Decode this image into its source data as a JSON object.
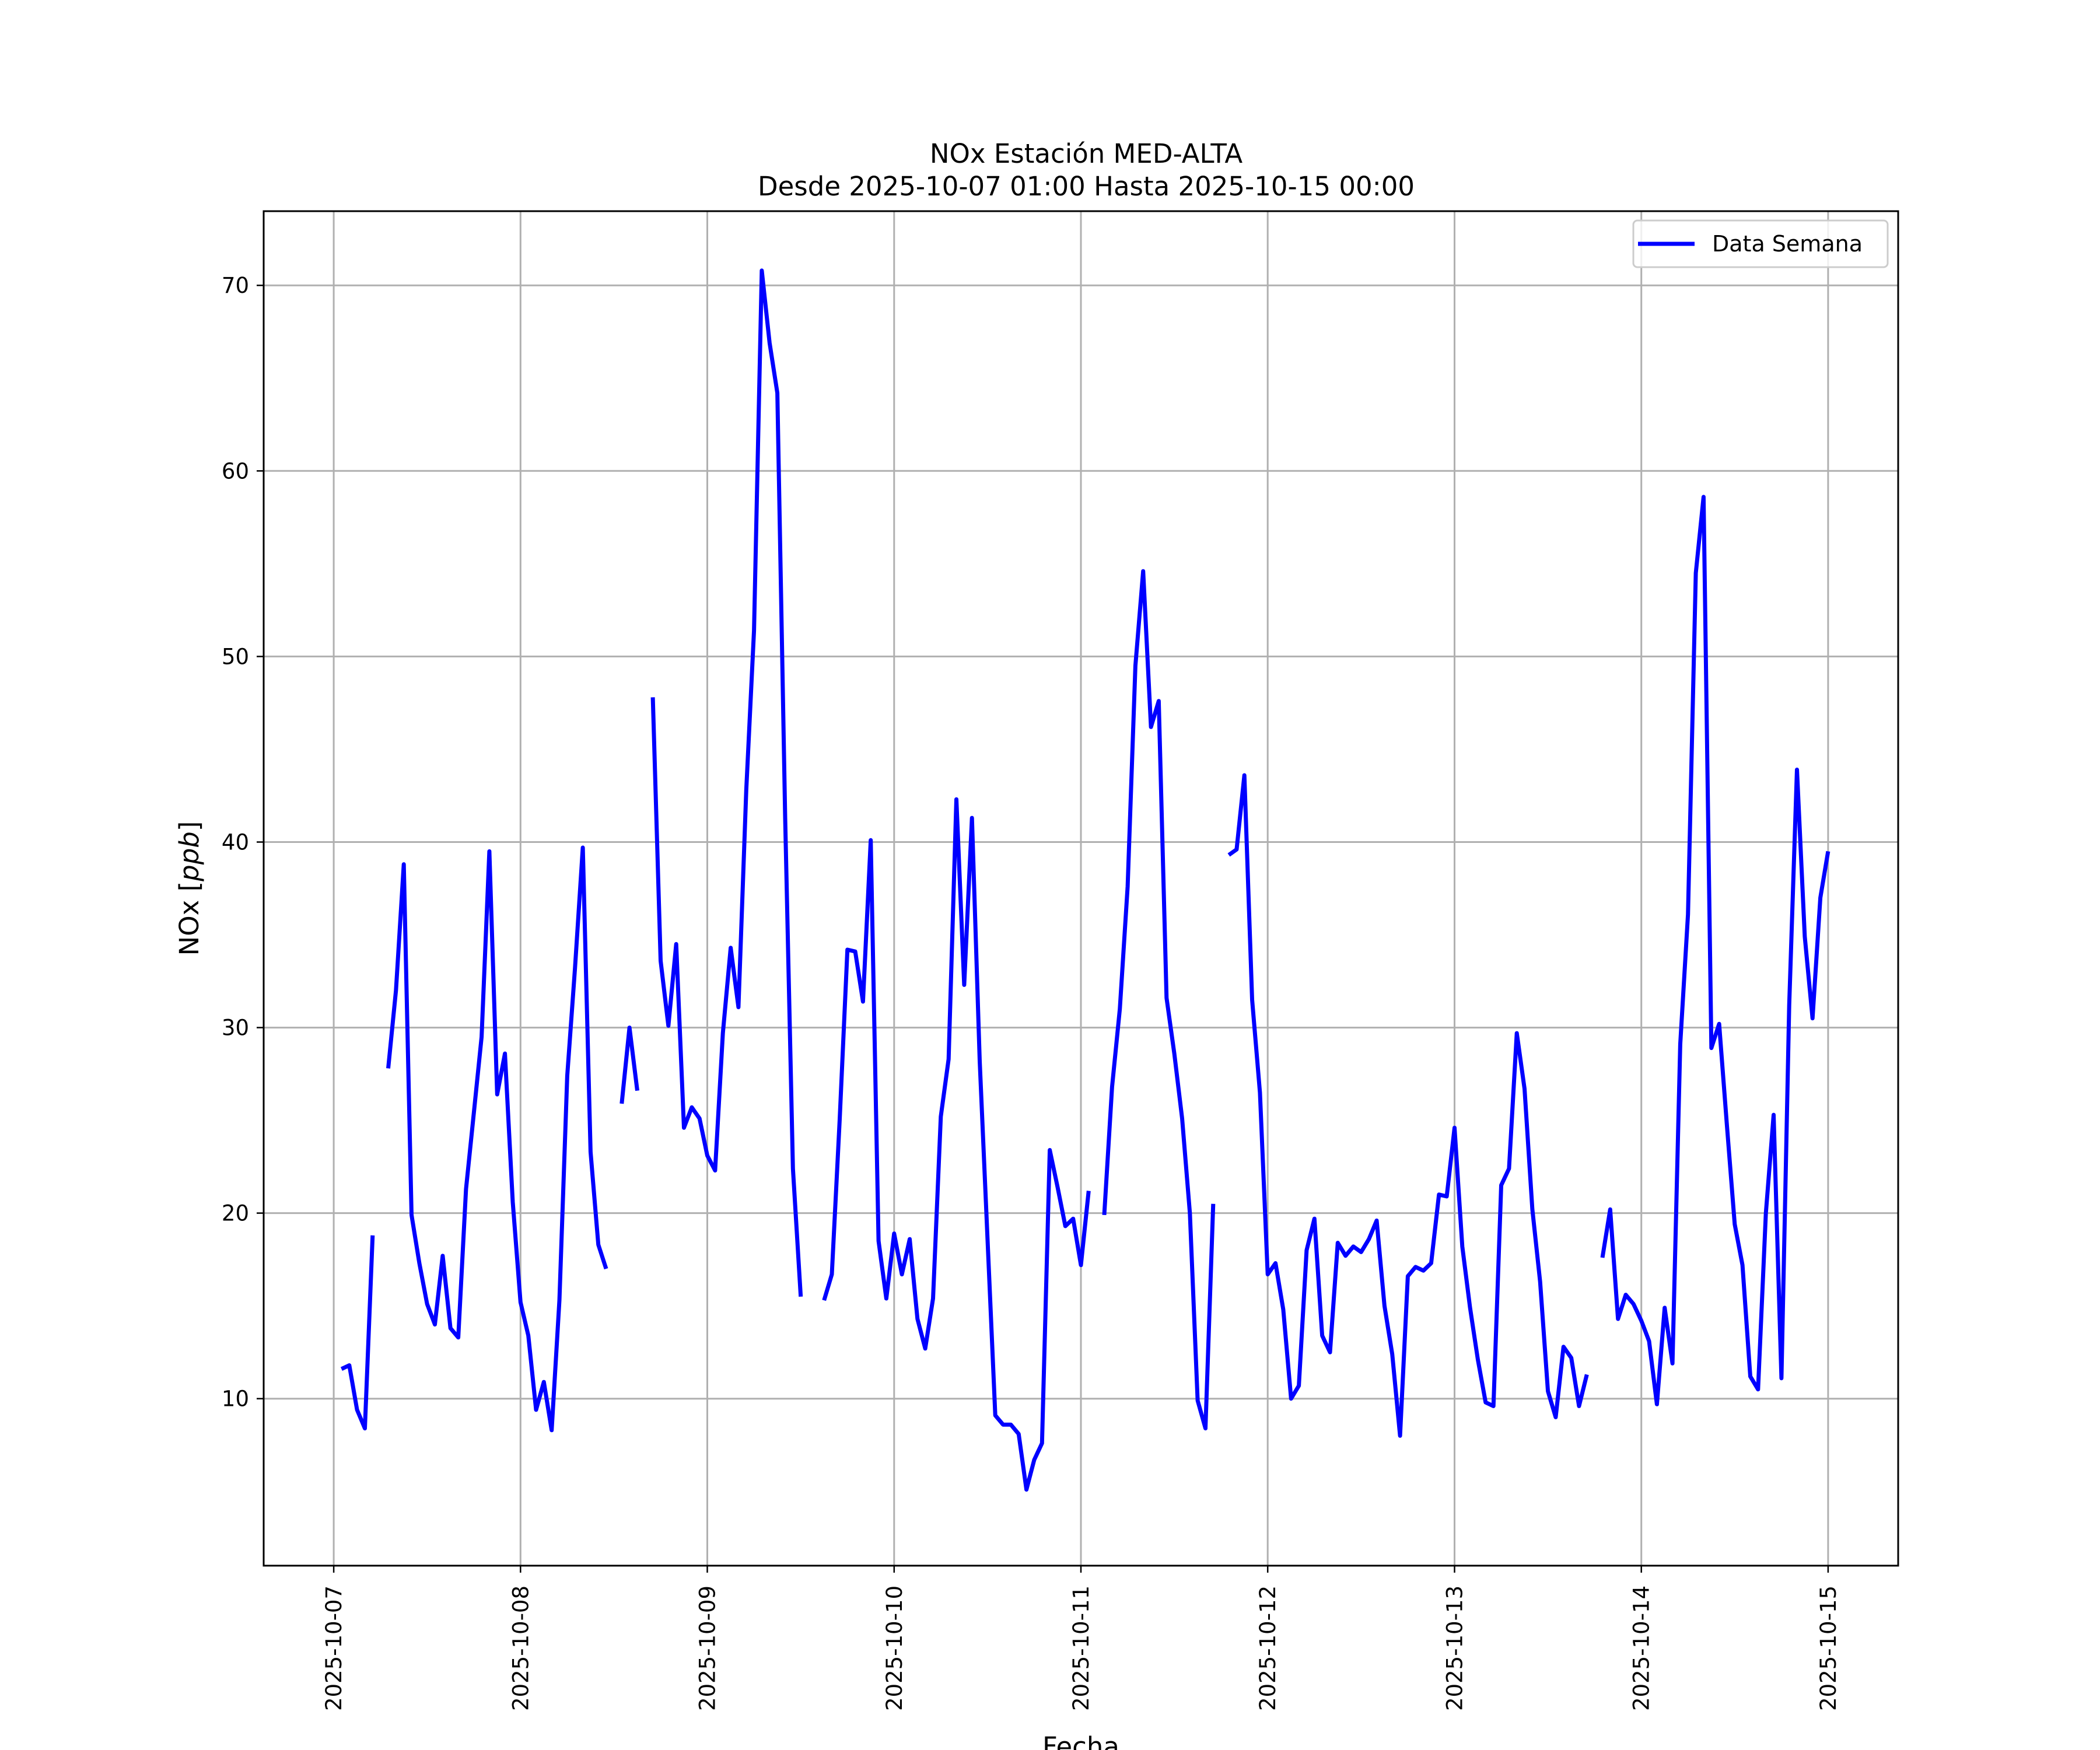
{
  "chart_data": {
    "type": "line",
    "title": "NOx Estación MED-ALTA",
    "subtitle": "Desde 2025-10-07 01:00 Hasta 2025-10-15 00:00",
    "xlabel": "Fecha",
    "ylabel": "NOx [ppb]",
    "ylabel_parts": {
      "prefix": "NOx [",
      "unit": "ppb",
      "suffix": "]"
    },
    "x_ticks": [
      "2025-10-07",
      "2025-10-08",
      "2025-10-09",
      "2025-10-10",
      "2025-10-11",
      "2025-10-12",
      "2025-10-13",
      "2025-10-14",
      "2025-10-15"
    ],
    "y_ticks": [
      10,
      20,
      30,
      40,
      50,
      60,
      70
    ],
    "xlim": [
      "2025-10-06 15:00",
      "2025-10-15 09:00"
    ],
    "ylim": [
      1,
      74
    ],
    "grid": true,
    "legend_position": "top-right",
    "series": [
      {
        "name": "Data Semana",
        "color": "#0000ff",
        "points": [
          [
            "2025-10-07 01:00",
            11.6
          ],
          [
            "2025-10-07 02:00",
            11.8
          ],
          [
            "2025-10-07 03:00",
            9.4
          ],
          [
            "2025-10-07 04:00",
            8.4
          ],
          [
            "2025-10-07 05:00",
            18.8
          ],
          [
            "2025-10-07 06:00",
            null
          ],
          [
            "2025-10-07 07:00",
            27.8
          ],
          [
            "2025-10-07 08:00",
            32.0
          ],
          [
            "2025-10-07 09:00",
            38.8
          ],
          [
            "2025-10-07 10:00",
            19.9
          ],
          [
            "2025-10-07 11:00",
            17.3
          ],
          [
            "2025-10-07 12:00",
            15.1
          ],
          [
            "2025-10-07 13:00",
            14.0
          ],
          [
            "2025-10-07 14:00",
            17.7
          ],
          [
            "2025-10-07 15:00",
            13.8
          ],
          [
            "2025-10-07 16:00",
            13.3
          ],
          [
            "2025-10-07 17:00",
            21.3
          ],
          [
            "2025-10-07 18:00",
            25.4
          ],
          [
            "2025-10-07 19:00",
            29.5
          ],
          [
            "2025-10-07 20:00",
            39.5
          ],
          [
            "2025-10-07 21:00",
            26.4
          ],
          [
            "2025-10-07 22:00",
            28.6
          ],
          [
            "2025-10-07 23:00",
            20.6
          ],
          [
            "2025-10-08 00:00",
            15.2
          ],
          [
            "2025-10-08 01:00",
            13.4
          ],
          [
            "2025-10-08 02:00",
            9.4
          ],
          [
            "2025-10-08 03:00",
            10.9
          ],
          [
            "2025-10-08 04:00",
            8.3
          ],
          [
            "2025-10-08 05:00",
            15.3
          ],
          [
            "2025-10-08 06:00",
            27.4
          ],
          [
            "2025-10-08 07:00",
            33.2
          ],
          [
            "2025-10-08 08:00",
            39.7
          ],
          [
            "2025-10-08 09:00",
            23.3
          ],
          [
            "2025-10-08 10:00",
            18.3
          ],
          [
            "2025-10-08 11:00",
            17.0
          ],
          [
            "2025-10-08 12:00",
            null
          ],
          [
            "2025-10-08 13:00",
            25.9
          ],
          [
            "2025-10-08 14:00",
            30.0
          ],
          [
            "2025-10-08 15:00",
            26.6
          ],
          [
            "2025-10-08 16:00",
            null
          ],
          [
            "2025-10-08 17:00",
            47.8
          ],
          [
            "2025-10-08 18:00",
            33.6
          ],
          [
            "2025-10-08 19:00",
            30.1
          ],
          [
            "2025-10-08 20:00",
            34.5
          ],
          [
            "2025-10-08 21:00",
            24.6
          ],
          [
            "2025-10-08 22:00",
            25.7
          ],
          [
            "2025-10-08 23:00",
            25.1
          ],
          [
            "2025-10-09 00:00",
            23.1
          ],
          [
            "2025-10-09 01:00",
            22.3
          ],
          [
            "2025-10-09 02:00",
            29.7
          ],
          [
            "2025-10-09 03:00",
            34.3
          ],
          [
            "2025-10-09 04:00",
            31.1
          ],
          [
            "2025-10-09 05:00",
            42.8
          ],
          [
            "2025-10-09 06:00",
            51.4
          ],
          [
            "2025-10-09 07:00",
            70.8
          ],
          [
            "2025-10-09 08:00",
            66.9
          ],
          [
            "2025-10-09 09:00",
            64.2
          ],
          [
            "2025-10-09 10:00",
            41.3
          ],
          [
            "2025-10-09 11:00",
            22.4
          ],
          [
            "2025-10-09 12:00",
            15.5
          ],
          [
            "2025-10-09 13:00",
            null
          ],
          [
            "2025-10-09 15:00",
            15.3
          ],
          [
            "2025-10-09 16:00",
            16.7
          ],
          [
            "2025-10-09 17:00",
            25.0
          ],
          [
            "2025-10-09 18:00",
            34.2
          ],
          [
            "2025-10-09 19:00",
            34.1
          ],
          [
            "2025-10-09 20:00",
            31.4
          ],
          [
            "2025-10-09 21:00",
            40.1
          ],
          [
            "2025-10-09 22:00",
            18.5
          ],
          [
            "2025-10-09 23:00",
            15.4
          ],
          [
            "2025-10-10 00:00",
            18.9
          ],
          [
            "2025-10-10 01:00",
            16.7
          ],
          [
            "2025-10-10 02:00",
            18.6
          ],
          [
            "2025-10-10 03:00",
            14.3
          ],
          [
            "2025-10-10 04:00",
            12.7
          ],
          [
            "2025-10-10 05:00",
            15.4
          ],
          [
            "2025-10-10 06:00",
            25.2
          ],
          [
            "2025-10-10 07:00",
            28.3
          ],
          [
            "2025-10-10 08:00",
            42.3
          ],
          [
            "2025-10-10 09:00",
            32.3
          ],
          [
            "2025-10-10 10:00",
            41.3
          ],
          [
            "2025-10-10 11:00",
            28.2
          ],
          [
            "2025-10-10 12:00",
            18.6
          ],
          [
            "2025-10-10 13:00",
            9.1
          ],
          [
            "2025-10-10 14:00",
            8.6
          ],
          [
            "2025-10-10 15:00",
            8.6
          ],
          [
            "2025-10-10 16:00",
            8.1
          ],
          [
            "2025-10-10 17:00",
            5.1
          ],
          [
            "2025-10-10 18:00",
            6.7
          ],
          [
            "2025-10-10 19:00",
            7.6
          ],
          [
            "2025-10-10 20:00",
            23.4
          ],
          [
            "2025-10-10 21:00",
            21.4
          ],
          [
            "2025-10-10 22:00",
            19.3
          ],
          [
            "2025-10-10 23:00",
            19.7
          ],
          [
            "2025-10-11 00:00",
            17.2
          ],
          [
            "2025-10-11 01:00",
            21.2
          ],
          [
            "2025-10-11 02:00",
            null
          ],
          [
            "2025-10-11 03:00",
            19.9
          ],
          [
            "2025-10-11 04:00",
            26.8
          ],
          [
            "2025-10-11 05:00",
            31.0
          ],
          [
            "2025-10-11 06:00",
            37.6
          ],
          [
            "2025-10-11 07:00",
            49.5
          ],
          [
            "2025-10-11 08:00",
            54.6
          ],
          [
            "2025-10-11 09:00",
            46.2
          ],
          [
            "2025-10-11 10:00",
            47.6
          ],
          [
            "2025-10-11 11:00",
            31.6
          ],
          [
            "2025-10-11 12:00",
            28.6
          ],
          [
            "2025-10-11 13:00",
            25.1
          ],
          [
            "2025-10-11 14:00",
            20.0
          ],
          [
            "2025-10-11 15:00",
            9.9
          ],
          [
            "2025-10-11 16:00",
            8.4
          ],
          [
            "2025-10-11 17:00",
            20.5
          ],
          [
            "2025-10-11 18:00",
            null
          ],
          [
            "2025-10-11 19:00",
            39.3
          ],
          [
            "2025-10-11 20:00",
            39.6
          ],
          [
            "2025-10-11 21:00",
            43.6
          ],
          [
            "2025-10-11 22:00",
            31.5
          ],
          [
            "2025-10-11 23:00",
            26.5
          ],
          [
            "2025-10-12 00:00",
            16.7
          ],
          [
            "2025-10-12 01:00",
            17.3
          ],
          [
            "2025-10-12 02:00",
            14.8
          ],
          [
            "2025-10-12 03:00",
            10.0
          ],
          [
            "2025-10-12 04:00",
            10.7
          ],
          [
            "2025-10-12 05:00",
            18.0
          ],
          [
            "2025-10-12 06:00",
            19.7
          ],
          [
            "2025-10-12 07:00",
            13.4
          ],
          [
            "2025-10-12 08:00",
            12.5
          ],
          [
            "2025-10-12 09:00",
            18.4
          ],
          [
            "2025-10-12 10:00",
            17.7
          ],
          [
            "2025-10-12 11:00",
            18.2
          ],
          [
            "2025-10-12 12:00",
            17.9
          ],
          [
            "2025-10-12 13:00",
            18.6
          ],
          [
            "2025-10-12 14:00",
            19.6
          ],
          [
            "2025-10-12 15:00",
            15.0
          ],
          [
            "2025-10-12 16:00",
            12.4
          ],
          [
            "2025-10-12 17:00",
            8.0
          ],
          [
            "2025-10-12 18:00",
            16.6
          ],
          [
            "2025-10-12 19:00",
            17.1
          ],
          [
            "2025-10-12 20:00",
            16.9
          ],
          [
            "2025-10-12 21:00",
            17.3
          ],
          [
            "2025-10-12 22:00",
            21.0
          ],
          [
            "2025-10-12 23:00",
            20.9
          ],
          [
            "2025-10-13 00:00",
            24.6
          ],
          [
            "2025-10-13 01:00",
            18.2
          ],
          [
            "2025-10-13 02:00",
            14.9
          ],
          [
            "2025-10-13 03:00",
            12.1
          ],
          [
            "2025-10-13 04:00",
            9.8
          ],
          [
            "2025-10-13 05:00",
            9.6
          ],
          [
            "2025-10-13 06:00",
            21.5
          ],
          [
            "2025-10-13 07:00",
            22.4
          ],
          [
            "2025-10-13 08:00",
            29.7
          ],
          [
            "2025-10-13 09:00",
            26.7
          ],
          [
            "2025-10-13 10:00",
            20.2
          ],
          [
            "2025-10-13 11:00",
            16.3
          ],
          [
            "2025-10-13 12:00",
            10.4
          ],
          [
            "2025-10-13 13:00",
            9.0
          ],
          [
            "2025-10-13 14:00",
            12.8
          ],
          [
            "2025-10-13 15:00",
            12.2
          ],
          [
            "2025-10-13 16:00",
            9.6
          ],
          [
            "2025-10-13 17:00",
            11.3
          ],
          [
            "2025-10-13 18:00",
            null
          ],
          [
            "2025-10-13 19:00",
            17.6
          ],
          [
            "2025-10-13 20:00",
            20.2
          ],
          [
            "2025-10-13 21:00",
            14.3
          ],
          [
            "2025-10-13 22:00",
            15.6
          ],
          [
            "2025-10-13 23:00",
            15.1
          ],
          [
            "2025-10-14 00:00",
            14.2
          ],
          [
            "2025-10-14 01:00",
            13.1
          ],
          [
            "2025-10-14 02:00",
            9.7
          ],
          [
            "2025-10-14 03:00",
            14.9
          ],
          [
            "2025-10-14 04:00",
            11.9
          ],
          [
            "2025-10-14 05:00",
            29.1
          ],
          [
            "2025-10-14 06:00",
            36.1
          ],
          [
            "2025-10-14 07:00",
            54.5
          ],
          [
            "2025-10-14 08:00",
            58.6
          ],
          [
            "2025-10-14 09:00",
            28.9
          ],
          [
            "2025-10-14 10:00",
            30.2
          ],
          [
            "2025-10-14 11:00",
            24.7
          ],
          [
            "2025-10-14 12:00",
            19.4
          ],
          [
            "2025-10-14 13:00",
            17.2
          ],
          [
            "2025-10-14 14:00",
            11.2
          ],
          [
            "2025-10-14 15:00",
            10.5
          ],
          [
            "2025-10-14 16:00",
            20.0
          ],
          [
            "2025-10-14 17:00",
            25.3
          ],
          [
            "2025-10-14 18:00",
            11.1
          ],
          [
            "2025-10-14 19:00",
            31.2
          ],
          [
            "2025-10-14 20:00",
            43.9
          ],
          [
            "2025-10-14 21:00",
            34.9
          ],
          [
            "2025-10-14 22:00",
            30.5
          ],
          [
            "2025-10-14 23:00",
            37.0
          ],
          [
            "2025-10-15 00:00",
            39.5
          ]
        ]
      }
    ]
  }
}
